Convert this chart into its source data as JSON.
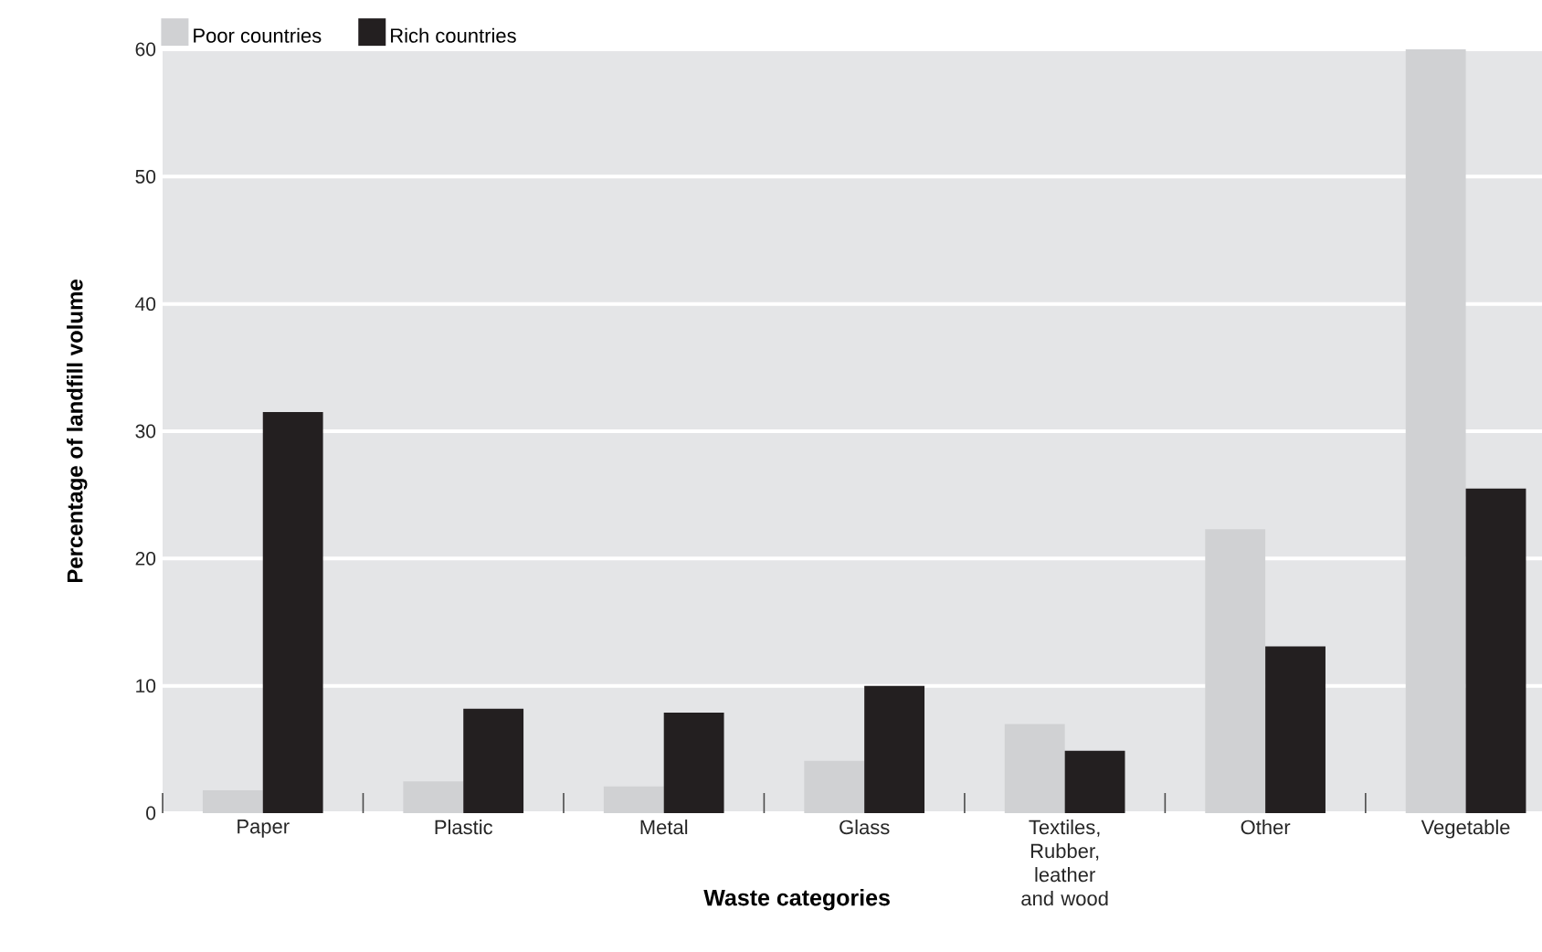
{
  "chart_data": {
    "type": "bar",
    "xlabel": "Waste categories",
    "ylabel": "Percentage of landfill volume",
    "categories": [
      "Paper",
      "Plastic",
      "Metal",
      "Glass",
      "Textiles, Rubber, leather and wood",
      "Other",
      "Vegetable"
    ],
    "series": [
      {
        "name": "Poor countries",
        "color": "#d0d1d3",
        "values": [
          1.8,
          2.5,
          2.1,
          4.1,
          7.0,
          22.3,
          60
        ]
      },
      {
        "name": "Rich countries",
        "color": "#231f20",
        "values": [
          31.5,
          8.2,
          7.9,
          10.0,
          4.9,
          13.1,
          25.5
        ]
      }
    ],
    "ylim": [
      0,
      60
    ],
    "yticks": [
      0,
      10,
      20,
      30,
      40,
      50,
      60
    ],
    "grid": "y",
    "legend": "top left"
  }
}
